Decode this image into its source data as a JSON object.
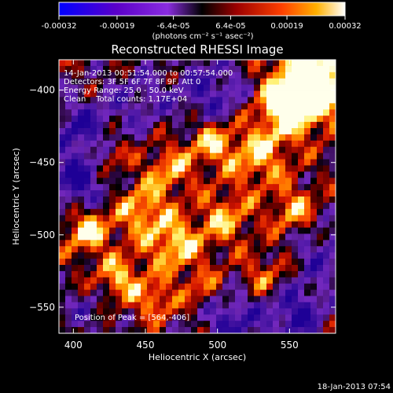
{
  "colorbar": {
    "tick_labels": [
      "-0.00032",
      "-0.00019",
      "-6.4e-05",
      "6.4e-05",
      "0.00019",
      "0.00032"
    ],
    "ticks": [
      -0.00032,
      -0.00019,
      -6.4e-05,
      6.4e-05,
      0.00019,
      0.00032
    ],
    "range": [
      -0.00032,
      0.00032
    ],
    "units_label": "(photons cm⁻² s⁻¹ asec⁻²)"
  },
  "chart_data": {
    "type": "heatmap",
    "title": "Reconstructed RHESSI Image",
    "xlabel": "Heliocentric X (arcsec)",
    "ylabel": "Heliocentric Y (arcsec)",
    "xlim": [
      390,
      582
    ],
    "ylim": [
      -568,
      -379
    ],
    "x_ticks": [
      400,
      450,
      500,
      550
    ],
    "y_ticks": [
      -400,
      -450,
      -500,
      -550
    ],
    "x_tick_labels": [
      "400",
      "450",
      "500",
      "550"
    ],
    "y_tick_labels": [
      "−400",
      "−450",
      "−500",
      "−550"
    ],
    "info_lines": [
      "14-Jan-2013 00:51:54.000 to 00:57:54.000",
      "Detectors: 3F 5F 6F 7F 8F 9F, Att 0",
      "Energy Range: 25.0 - 50.0 keV",
      "Clean    Total counts: 1.17E+04"
    ],
    "peak_label": "Position of Peak = [564,-406]",
    "peak": [
      564,
      -406
    ],
    "colormap": [
      "#0000ff",
      "#5a00c8",
      "#8a2ce0",
      "#000000",
      "#9b0000",
      "#ff1a00",
      "#ff8c00",
      "#ffff70",
      "#ffffff"
    ]
  },
  "footer": {
    "timestamp": "18-Jan-2013 07:54"
  }
}
